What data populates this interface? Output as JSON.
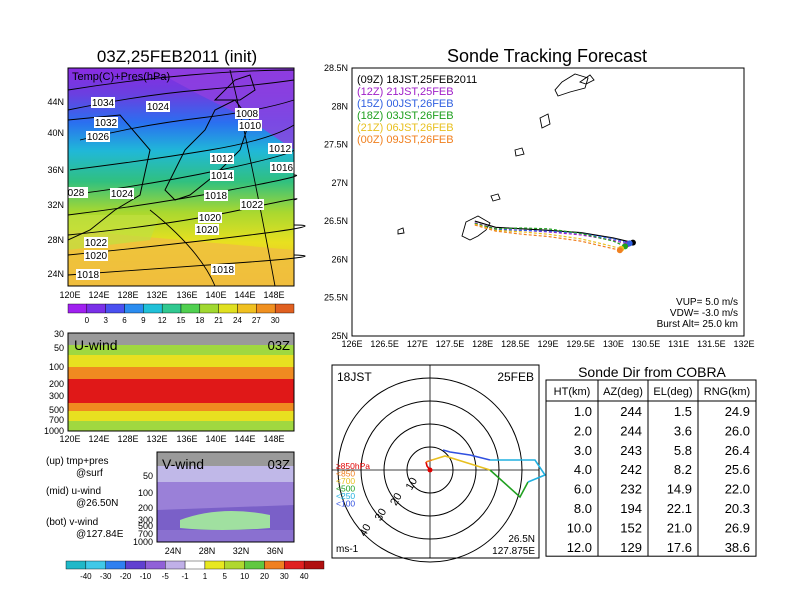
{
  "left": {
    "title": "03Z,25FEB2011 (init)",
    "map_label": "Temp(C)+Pres(hPa)",
    "map_lat_ticks": [
      "44N",
      "40N",
      "36N",
      "32N",
      "28N",
      "24N"
    ],
    "lon_ticks": [
      "120E",
      "124E",
      "128E",
      "132E",
      "136E",
      "140E",
      "144E",
      "148E"
    ],
    "temp_colorbar": [
      "0",
      "3",
      "6",
      "9",
      "12",
      "15",
      "18",
      "21",
      "24",
      "27",
      "30"
    ],
    "isobar_labels": [
      {
        "t": "1034"
      },
      {
        "t": "1024"
      },
      {
        "t": "1032"
      },
      {
        "t": "1026"
      },
      {
        "t": "1008"
      },
      {
        "t": "1010"
      },
      {
        "t": "1012"
      },
      {
        "t": "1012"
      },
      {
        "t": "1016"
      },
      {
        "t": "1014"
      },
      {
        "t": "028"
      },
      {
        "t": "1024"
      },
      {
        "t": "1018"
      },
      {
        "t": "1022"
      },
      {
        "t": "1020"
      },
      {
        "t": "1020"
      },
      {
        "t": "1022"
      },
      {
        "t": "1020"
      },
      {
        "t": "1018"
      },
      {
        "t": "1018"
      }
    ],
    "uwind_title": "U-wind",
    "uwind_time": "03Z",
    "uwind_pressure_ticks": [
      "30",
      "50",
      "100",
      "200",
      "300",
      "500",
      "700",
      "1000"
    ],
    "vwind_title": "V-wind",
    "vwind_time": "03Z",
    "vwind_pressure_ticks": [
      "50",
      "100",
      "200",
      "300",
      "500",
      "700",
      "1000"
    ],
    "vwind_lat_ticks": [
      "24N",
      "28N",
      "32N",
      "36N"
    ],
    "legend": [
      {
        "a": "(up) tmp+pres",
        "b": "@surf"
      },
      {
        "a": "(mid) u-wind",
        "b": "@26.50N"
      },
      {
        "a": "(bot) v-wind",
        "b": "@127.84E"
      }
    ],
    "wind_colorbar": [
      "-40",
      "-30",
      "-20",
      "-10",
      "-5",
      "-1",
      "1",
      "5",
      "10",
      "20",
      "30",
      "40"
    ]
  },
  "tracking": {
    "title": "Sonde Tracking Forecast",
    "lat_ticks": [
      "28.5N",
      "28N",
      "27.5N",
      "27N",
      "26.5N",
      "26N",
      "25.5N",
      "25N"
    ],
    "lon_ticks": [
      "126E",
      "126.5E",
      "127E",
      "127.5E",
      "128E",
      "128.5E",
      "129E",
      "129.5E",
      "130E",
      "130.5E",
      "131E",
      "131.5E",
      "132E"
    ],
    "legend": [
      {
        "label": "(09Z)  18JST,25FEB2011",
        "color": "#000000"
      },
      {
        "label": "(12Z)  21JST,25FEB",
        "color": "#a020c8"
      },
      {
        "label": "(15Z)  00JST,26FEB",
        "color": "#3060e0"
      },
      {
        "label": "(18Z)  03JST,26FEB",
        "color": "#20a020"
      },
      {
        "label": "(21Z)  06JST,26FEB",
        "color": "#e8c020"
      },
      {
        "label": "(00Z)  09JST,26FEB",
        "color": "#f08020"
      }
    ],
    "params": [
      "VUP=  5.0 m/s",
      "VDW= -3.0 m/s",
      "Burst Alt= 25.0 km"
    ]
  },
  "polar": {
    "time": "18JST",
    "date": "25FEB",
    "ring_labels": [
      "10",
      "20",
      "30",
      "40"
    ],
    "level_legend": [
      {
        "t": "≥850hPa",
        "c": "#e00000"
      },
      {
        "t": "<850",
        "c": "#f08020"
      },
      {
        "t": "<700",
        "c": "#e8c020"
      },
      {
        "t": "<500",
        "c": "#20a020"
      },
      {
        "t": "<250",
        "c": "#20b0e0"
      },
      {
        "t": "<100",
        "c": "#3050e0"
      }
    ],
    "unit": "ms-1",
    "loc_lat": "26.5N",
    "loc_lon": "127.875E"
  },
  "cobra": {
    "title": "Sonde Dir from COBRA",
    "headers": [
      "HT(km)",
      "AZ(deg)",
      "EL(deg)",
      "RNG(km)"
    ],
    "rows": [
      [
        "1.0",
        "244",
        "1.5",
        "24.9"
      ],
      [
        "2.0",
        "244",
        "3.6",
        "26.0"
      ],
      [
        "3.0",
        "243",
        "5.8",
        "26.4"
      ],
      [
        "4.0",
        "242",
        "8.2",
        "25.6"
      ],
      [
        "6.0",
        "232",
        "14.9",
        "22.0"
      ],
      [
        "8.0",
        "194",
        "22.1",
        "20.3"
      ],
      [
        "10.0",
        "152",
        "21.0",
        "26.9"
      ],
      [
        "12.0",
        "129",
        "17.6",
        "38.6"
      ]
    ]
  },
  "chart_data": [
    {
      "type": "line",
      "title": "Sonde Tracking Forecast",
      "xlim": [
        126,
        132
      ],
      "ylim": [
        25,
        28.5
      ],
      "series": [
        {
          "name": "(09Z)  18JST,25FEB2011",
          "x": [
            127.88,
            128.2,
            128.6,
            129.0,
            129.5,
            130.0,
            130.3
          ],
          "y": [
            26.5,
            26.42,
            26.4,
            26.38,
            26.35,
            26.28,
            26.22
          ]
        },
        {
          "name": "(12Z)  21JST,25FEB",
          "x": [
            127.88,
            128.2,
            128.6,
            129.0,
            129.5,
            130.0,
            130.22
          ],
          "y": [
            26.48,
            26.4,
            26.38,
            26.36,
            26.32,
            26.25,
            26.2
          ]
        },
        {
          "name": "(15Z)  00JST,26FEB",
          "x": [
            127.88,
            128.2,
            128.6,
            129.0,
            129.5,
            130.0,
            130.25
          ],
          "y": [
            26.47,
            26.39,
            26.38,
            26.37,
            26.34,
            26.27,
            26.21
          ]
        },
        {
          "name": "(18Z)  03JST,26FEB",
          "x": [
            127.88,
            128.2,
            128.6,
            129.0,
            129.5,
            130.0,
            130.18
          ],
          "y": [
            26.47,
            26.4,
            26.41,
            26.4,
            26.34,
            26.24,
            26.17
          ]
        },
        {
          "name": "(21Z)  06JST,26FEB",
          "x": [
            127.88,
            128.2,
            128.6,
            129.0,
            129.5,
            129.9,
            130.12
          ],
          "y": [
            26.46,
            26.38,
            26.36,
            26.33,
            26.27,
            26.19,
            26.14
          ]
        },
        {
          "name": "(00Z)  09JST,26FEB",
          "x": [
            127.88,
            128.2,
            128.6,
            129.0,
            129.5,
            129.9,
            130.1
          ],
          "y": [
            26.45,
            26.37,
            26.33,
            26.3,
            26.24,
            26.16,
            26.12
          ]
        }
      ]
    },
    {
      "type": "table",
      "title": "Sonde Dir from COBRA",
      "columns": [
        "HT(km)",
        "AZ(deg)",
        "EL(deg)",
        "RNG(km)"
      ],
      "rows": [
        [
          1.0,
          244,
          1.5,
          24.9
        ],
        [
          2.0,
          244,
          3.6,
          26.0
        ],
        [
          3.0,
          243,
          5.8,
          26.4
        ],
        [
          4.0,
          242,
          8.2,
          25.6
        ],
        [
          6.0,
          232,
          14.9,
          22.0
        ],
        [
          8.0,
          194,
          22.1,
          20.3
        ],
        [
          10.0,
          152,
          21.0,
          26.9
        ],
        [
          12.0,
          129,
          17.6,
          38.6
        ]
      ]
    }
  ]
}
